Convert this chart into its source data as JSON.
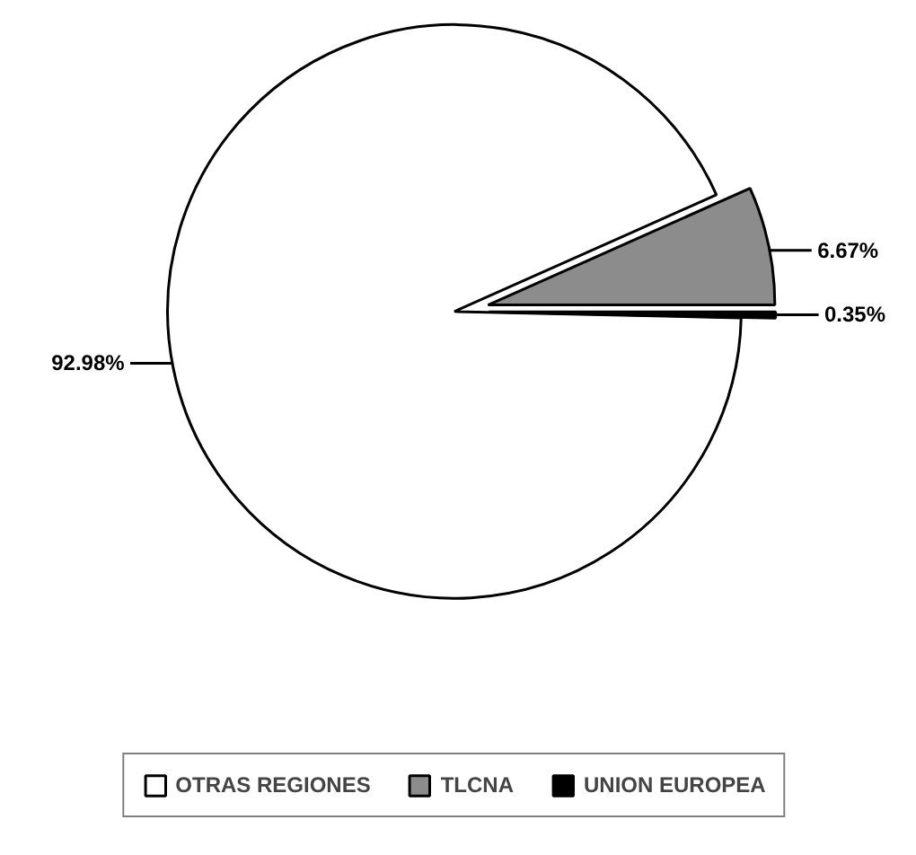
{
  "chart_data": {
    "type": "pie",
    "categories": [
      "OTRAS REGIONES",
      "TLCNA",
      "UNION EUROPEA"
    ],
    "values": [
      92.98,
      6.67,
      0.35
    ],
    "colors": [
      "#ffffff",
      "#8c8c8c",
      "#000000"
    ],
    "value_labels": [
      "92.98%",
      "6.67%",
      "0.35%"
    ],
    "legend": "bottom"
  }
}
